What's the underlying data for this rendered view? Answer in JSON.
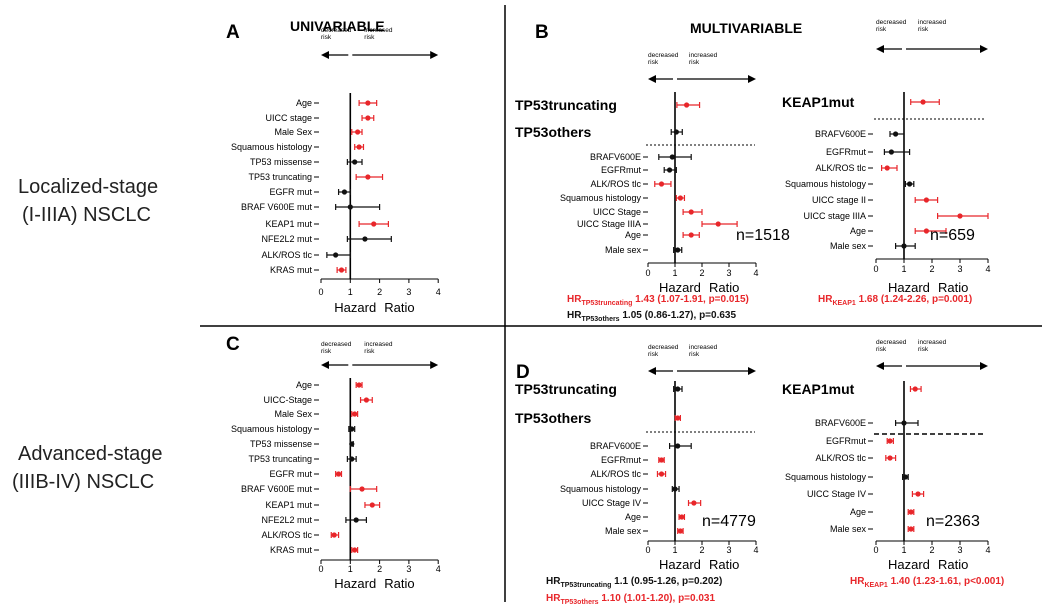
{
  "row_labels": {
    "localized_line1": "Localized-stage",
    "localized_line2": "(I-IIIA) NSCLC",
    "advanced_line1": "Advanced-stage",
    "advanced_line2": "(IIIB-IV) NSCLC"
  },
  "headings": {
    "univariable": "UNIVARIABLE",
    "multivariable": "MULTIVARIABLE"
  },
  "common": {
    "decreased_risk": [
      "decreased",
      "risk"
    ],
    "increased_risk": [
      "increased",
      "risk"
    ],
    "x_ticks": [
      0,
      1,
      2,
      3,
      4
    ],
    "xlabel_hazard": "Hazard",
    "xlabel_ratio": "Ratio"
  },
  "colors": {
    "significant": "#e8262a",
    "nonsignificant": "#111111"
  },
  "chart_data": [
    {
      "panel": "A",
      "type": "forest",
      "xlim": [
        0,
        4
      ],
      "reference": 1,
      "rows": [
        {
          "label": "Age",
          "hr": 1.6,
          "lo": 1.3,
          "hi": 1.9,
          "sig": true
        },
        {
          "label": "UICC stage",
          "hr": 1.6,
          "lo": 1.4,
          "hi": 1.8,
          "sig": true
        },
        {
          "label": "Male Sex",
          "hr": 1.25,
          "lo": 1.05,
          "hi": 1.4,
          "sig": true
        },
        {
          "label": "Squamous histology",
          "hr": 1.3,
          "lo": 1.15,
          "hi": 1.45,
          "sig": true
        },
        {
          "label": "TP53 missense",
          "hr": 1.15,
          "lo": 0.9,
          "hi": 1.4,
          "sig": false
        },
        {
          "label": "TP53 truncating",
          "hr": 1.6,
          "lo": 1.2,
          "hi": 2.1,
          "sig": true
        },
        {
          "label": "EGFR mut",
          "hr": 0.8,
          "lo": 0.6,
          "hi": 1.0,
          "sig": false
        },
        {
          "label": "BRAF V600E mut",
          "hr": 1.0,
          "lo": 0.5,
          "hi": 2.0,
          "sig": false
        },
        {
          "label": "KEAP1 mut",
          "hr": 1.8,
          "lo": 1.3,
          "hi": 2.3,
          "sig": true
        },
        {
          "label": "NFE2L2 mut",
          "hr": 1.5,
          "lo": 0.9,
          "hi": 2.4,
          "sig": false
        },
        {
          "label": "ALK/ROS tlc",
          "hr": 0.5,
          "lo": 0.2,
          "hi": 1.0,
          "sig": false
        },
        {
          "label": "KRAS mut",
          "hr": 0.7,
          "lo": 0.55,
          "hi": 0.85,
          "sig": true
        }
      ]
    },
    {
      "panel": "B-left",
      "type": "forest",
      "xlim": [
        0,
        4
      ],
      "reference": 1,
      "group_labels": [
        "TP53truncating",
        "TP53others"
      ],
      "n_label": "n=1518",
      "rows": [
        {
          "label": "TP53truncating",
          "hr": 1.43,
          "lo": 1.07,
          "hi": 1.91,
          "sig": true
        },
        {
          "label": "TP53others",
          "hr": 1.05,
          "lo": 0.86,
          "hi": 1.27,
          "sig": false
        },
        {
          "label": "BRAFV600E",
          "hr": 0.9,
          "lo": 0.4,
          "hi": 1.6,
          "sig": false
        },
        {
          "label": "EGFRmut",
          "hr": 0.8,
          "lo": 0.6,
          "hi": 1.05,
          "sig": false
        },
        {
          "label": "ALK/ROS tlc",
          "hr": 0.5,
          "lo": 0.25,
          "hi": 0.85,
          "sig": true
        },
        {
          "label": "Squamous histology",
          "hr": 1.2,
          "lo": 1.05,
          "hi": 1.35,
          "sig": true
        },
        {
          "label": "UICC Stage",
          "hr": 1.6,
          "lo": 1.3,
          "hi": 2.0,
          "sig": true
        },
        {
          "label": "UICC Stage IIIA",
          "hr": 2.6,
          "lo": 2.0,
          "hi": 3.3,
          "sig": true
        },
        {
          "label": "Age",
          "hr": 1.6,
          "lo": 1.3,
          "hi": 1.9,
          "sig": true
        },
        {
          "label": "Male sex",
          "hr": 1.1,
          "lo": 0.95,
          "hi": 1.25,
          "sig": false
        }
      ],
      "hr_lines": [
        {
          "prefix": "HR",
          "sub": "TP53truncating",
          "text": " 1.43 (1.07-1.91, p=0.015)",
          "color": "#e8262a"
        },
        {
          "prefix": "HR",
          "sub": "TP53others",
          "text": " 1.05 (0.86-1.27), p=0.635",
          "color": "#111111"
        }
      ]
    },
    {
      "panel": "B-right",
      "type": "forest",
      "xlim": [
        0,
        4
      ],
      "reference": 1,
      "group_labels": [
        "KEAP1mut"
      ],
      "n_label": "n=659",
      "rows": [
        {
          "label": "KEAP1mut",
          "hr": 1.68,
          "lo": 1.24,
          "hi": 2.26,
          "sig": true
        },
        {
          "label": "BRAFV600E",
          "hr": 0.7,
          "lo": 0.5,
          "hi": 1.0,
          "sig": false
        },
        {
          "label": "EGFRmut",
          "hr": 0.55,
          "lo": 0.3,
          "hi": 1.2,
          "sig": false
        },
        {
          "label": "ALK/ROS tlc",
          "hr": 0.4,
          "lo": 0.2,
          "hi": 0.75,
          "sig": true
        },
        {
          "label": "Squamous histology",
          "hr": 1.2,
          "lo": 1.05,
          "hi": 1.35,
          "sig": false
        },
        {
          "label": "UICC stage II",
          "hr": 1.8,
          "lo": 1.4,
          "hi": 2.2,
          "sig": true
        },
        {
          "label": "UICC stage IIIA",
          "hr": 3.0,
          "lo": 2.2,
          "hi": 4.0,
          "sig": true
        },
        {
          "label": "Age",
          "hr": 1.8,
          "lo": 1.4,
          "hi": 2.5,
          "sig": true
        },
        {
          "label": "Male sex",
          "hr": 1.0,
          "lo": 0.7,
          "hi": 1.4,
          "sig": false
        }
      ],
      "hr_lines": [
        {
          "prefix": "HR",
          "sub": "KEAP1",
          "text": " 1.68 (1.24-2.26, p=0.001)",
          "color": "#e8262a"
        }
      ]
    },
    {
      "panel": "C",
      "type": "forest",
      "xlim": [
        0,
        4
      ],
      "reference": 1,
      "rows": [
        {
          "label": "Age",
          "hr": 1.3,
          "lo": 1.2,
          "hi": 1.4,
          "sig": true
        },
        {
          "label": "UICC-Stage",
          "hr": 1.55,
          "lo": 1.35,
          "hi": 1.75,
          "sig": true
        },
        {
          "label": "Male Sex",
          "hr": 1.15,
          "lo": 1.05,
          "hi": 1.25,
          "sig": true
        },
        {
          "label": "Squamous histology",
          "hr": 1.05,
          "lo": 0.95,
          "hi": 1.15,
          "sig": false
        },
        {
          "label": "TP53 missense",
          "hr": 1.05,
          "lo": 1.0,
          "hi": 1.1,
          "sig": false
        },
        {
          "label": "TP53 truncating",
          "hr": 1.05,
          "lo": 0.9,
          "hi": 1.2,
          "sig": false
        },
        {
          "label": "EGFR mut",
          "hr": 0.6,
          "lo": 0.5,
          "hi": 0.7,
          "sig": true
        },
        {
          "label": "BRAF V600E mut",
          "hr": 1.4,
          "lo": 1.0,
          "hi": 1.9,
          "sig": true
        },
        {
          "label": "KEAP1 mut",
          "hr": 1.75,
          "lo": 1.5,
          "hi": 2.0,
          "sig": true
        },
        {
          "label": "NFE2L2 mut",
          "hr": 1.2,
          "lo": 0.85,
          "hi": 1.55,
          "sig": false
        },
        {
          "label": "ALK/ROS tlc",
          "hr": 0.45,
          "lo": 0.35,
          "hi": 0.6,
          "sig": true
        },
        {
          "label": "KRAS mut",
          "hr": 1.15,
          "lo": 1.05,
          "hi": 1.25,
          "sig": true
        }
      ]
    },
    {
      "panel": "D-left",
      "type": "forest",
      "xlim": [
        0,
        4
      ],
      "reference": 1,
      "group_labels": [
        "TP53truncating",
        "TP53others"
      ],
      "n_label": "n=4779",
      "rows": [
        {
          "label": "TP53truncating",
          "hr": 1.1,
          "lo": 0.95,
          "hi": 1.26,
          "sig": false
        },
        {
          "label": "TP53others",
          "hr": 1.1,
          "lo": 1.01,
          "hi": 1.2,
          "sig": true
        },
        {
          "label": "BRAFV600E",
          "hr": 1.1,
          "lo": 0.8,
          "hi": 1.6,
          "sig": false
        },
        {
          "label": "EGFRmut",
          "hr": 0.5,
          "lo": 0.4,
          "hi": 0.6,
          "sig": true
        },
        {
          "label": "ALK/ROS tlc",
          "hr": 0.5,
          "lo": 0.35,
          "hi": 0.65,
          "sig": true
        },
        {
          "label": "Squamous histology",
          "hr": 1.0,
          "lo": 0.9,
          "hi": 1.15,
          "sig": false
        },
        {
          "label": "UICC Stage IV",
          "hr": 1.7,
          "lo": 1.5,
          "hi": 1.95,
          "sig": true
        },
        {
          "label": "Age",
          "hr": 1.25,
          "lo": 1.15,
          "hi": 1.35,
          "sig": true
        },
        {
          "label": "Male sex",
          "hr": 1.2,
          "lo": 1.1,
          "hi": 1.3,
          "sig": true
        }
      ],
      "hr_lines": [
        {
          "prefix": "HR",
          "sub": "TP53truncating",
          "text": " 1.1 (0.95-1.26, p=0.202)",
          "color": "#111111"
        },
        {
          "prefix": "HR",
          "sub": "TP53others",
          "text": " 1.10 (1.01-1.20), p=0.031",
          "color": "#e8262a"
        }
      ]
    },
    {
      "panel": "D-right",
      "type": "forest",
      "xlim": [
        0,
        4
      ],
      "reference": 1,
      "group_labels": [
        "KEAP1mut"
      ],
      "n_label": "n=2363",
      "rows": [
        {
          "label": "KEAP1mut",
          "hr": 1.4,
          "lo": 1.23,
          "hi": 1.61,
          "sig": true
        },
        {
          "label": "BRAFV600E",
          "hr": 1.0,
          "lo": 0.7,
          "hi": 1.5,
          "sig": false
        },
        {
          "label": "EGFRmut",
          "hr": 0.5,
          "lo": 0.4,
          "hi": 0.62,
          "sig": true
        },
        {
          "label": "ALK/ROS tlc",
          "hr": 0.5,
          "lo": 0.35,
          "hi": 0.7,
          "sig": true
        },
        {
          "label": "Squamous histology",
          "hr": 1.05,
          "lo": 0.95,
          "hi": 1.15,
          "sig": false
        },
        {
          "label": "UICC Stage IV",
          "hr": 1.5,
          "lo": 1.3,
          "hi": 1.7,
          "sig": true
        },
        {
          "label": "Age",
          "hr": 1.25,
          "lo": 1.15,
          "hi": 1.35,
          "sig": true
        },
        {
          "label": "Male sex",
          "hr": 1.25,
          "lo": 1.15,
          "hi": 1.35,
          "sig": true
        }
      ],
      "hr_lines": [
        {
          "prefix": "HR",
          "sub": "KEAP1",
          "text": " 1.40 (1.23-1.61, p<0.001)",
          "color": "#e8262a"
        }
      ]
    }
  ]
}
